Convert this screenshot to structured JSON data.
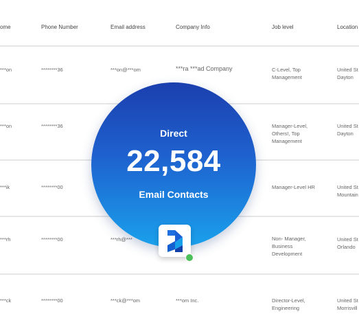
{
  "headers": [
    "ome",
    "Phone Number",
    "Email address",
    "Company Info",
    "Job level",
    "Location"
  ],
  "rows": [
    {
      "name": "***on",
      "phone": "********36",
      "email": "***on@***om",
      "company": "***ra ***ad Company",
      "job": "C-Level, Top Management",
      "location": "United St Dayton"
    },
    {
      "name": "***on",
      "phone": "********36",
      "email": "",
      "company": "",
      "job": "Manager-Level, Others!, Top Management",
      "location": "United St Dayton"
    },
    {
      "name": "***ik",
      "phone": "********00",
      "email": "",
      "company": "",
      "job": "Manager-Level HR",
      "location": "United St Mountain"
    },
    {
      "name": "***rh",
      "phone": "********00",
      "email": "***rh@***",
      "company": "",
      "job": "Non- Manager, Business Development",
      "location": "United St Orlando"
    },
    {
      "name": "***ck",
      "phone": "********00",
      "email": "***ck@***om",
      "company": "***om Inc.",
      "job": "Director-Level, Engineering",
      "location": "United St Morrisvill"
    }
  ],
  "stat": {
    "top_label": "Direct",
    "number": "22,584",
    "bottom_label": "Email Contacts"
  },
  "colors": {
    "circle_top": "#1b3fae",
    "circle_bottom": "#1aa1ec",
    "status_dot": "#4cc05a"
  },
  "icons": {
    "app_logo": "z-logo-icon",
    "status": "online-status-icon"
  }
}
